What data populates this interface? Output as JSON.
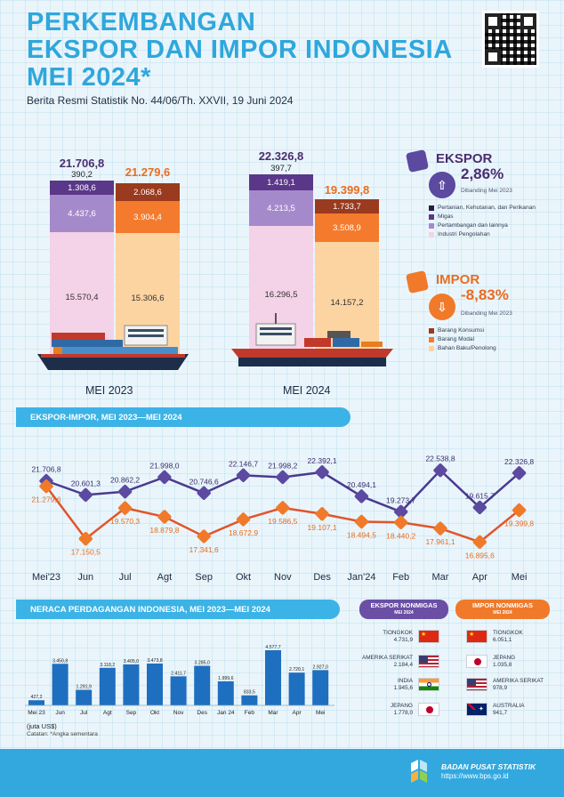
{
  "header": {
    "title_line1": "PERKEMBANGAN",
    "title_line2": "EKSPOR DAN IMPOR INDONESIA",
    "title_line3": "MEI 2024*",
    "subtitle": "Berita Resmi Statistik No. 44/06/Th. XXVII, 19 Juni 2024"
  },
  "colors": {
    "brand_blue": "#2fa7dc",
    "ekspor_purple": "#5b4aa0",
    "impor_orange": "#f07a2a",
    "ekspor_dark": "#4b2d6e",
    "ekspor_mid": "#a184c9",
    "ekspor_light": "#f3d3e8",
    "impor_dark": "#9a3a1e",
    "impor_mid": "#f47b2d",
    "impor_light": "#fcd4a2"
  },
  "bars": {
    "may2023": {
      "label": "MEI 2023",
      "ekspor": {
        "total": "21.706,8",
        "pertanian": "390,2",
        "migas": "1.308,6",
        "pertambangan": "4.437,6",
        "industri": "15.570,4"
      },
      "impor": {
        "total": "21.279,6",
        "konsumsi": "2.068,6",
        "modal": "3.904,4",
        "bahan_baku": "15.306,6"
      }
    },
    "may2024": {
      "label": "MEI 2024",
      "ekspor": {
        "total": "22.326,8",
        "pertanian": "397,7",
        "migas": "1.419,1",
        "pertambangan": "4.213,5",
        "industri": "16.296,5"
      },
      "impor": {
        "total": "19.399,8",
        "konsumsi": "1.733,7",
        "modal": "3.508,9",
        "bahan_baku": "14.157,2"
      }
    }
  },
  "kpi": {
    "ekspor": {
      "title": "EKSPOR",
      "value": "2,86%",
      "note": "Dibanding Mei 2023",
      "legend": [
        "Pertanian, Kehutanan, dan Perikanan",
        "Migas",
        "Pertambangan dan lainnya",
        "Industri Pengolahan"
      ]
    },
    "impor": {
      "title": "IMPOR",
      "value": "-8,83%",
      "note": "Dibanding Mei 2023",
      "legend": [
        "Barang Konsumsi",
        "Barang Modal",
        "Bahan Baku/Penolong"
      ]
    }
  },
  "line_section": {
    "title": "EKSPOR-IMPOR, MEI 2023—MEI 2024"
  },
  "chart_data": [
    {
      "type": "line",
      "title": "EKSPOR-IMPOR, MEI 2023—MEI 2024",
      "categories": [
        "Mei'23",
        "Jun",
        "Jul",
        "Agt",
        "Sep",
        "Okt",
        "Nov",
        "Des",
        "Jan'24",
        "Feb",
        "Mar",
        "Apr",
        "Mei"
      ],
      "series": [
        {
          "values": [
            21706.8,
            20601.3,
            20862.2,
            21998.0,
            20746.6,
            22146.7,
            21998.2,
            22392.1,
            20494.1,
            19273.7,
            22538.8,
            19615.7,
            22326.8
          ],
          "labels": [
            "21.706,8",
            "20.601,3",
            "20.862,2",
            "21.998,0",
            "20.746,6",
            "22.146,7",
            "21.998,2",
            "22.392,1",
            "20.494,1",
            "19.273,7",
            "22.538,8",
            "19.615,7",
            "22.326,8"
          ]
        },
        {
          "values": [
            21279.6,
            17150.5,
            19570.3,
            18879.8,
            17341.6,
            18672.9,
            19586.5,
            19107.1,
            18494.5,
            18440.2,
            17961.1,
            16895.6,
            19399.8
          ],
          "labels": [
            "21.279,6",
            "17.150,5",
            "19.570,3",
            "18.879,8",
            "17.341,6",
            "18.672,9",
            "19.586,5",
            "19.107,1",
            "18.494,5",
            "18.440,2",
            "17.961,1",
            "16.895,6",
            "19.399,8"
          ]
        }
      ]
    },
    {
      "type": "bar",
      "title": "NERACA PERDAGANGAN INDONESIA, MEI 2023—MEI 2024",
      "categories": [
        "Mei 23",
        "Jun",
        "Jul",
        "Agt",
        "Sep",
        "Okt",
        "Nov",
        "Des",
        "Jan 24",
        "Feb",
        "Mar",
        "Apr",
        "Mei"
      ],
      "values": [
        427.2,
        3450.8,
        1291.9,
        3118.2,
        3405.0,
        3473.8,
        2411.7,
        3285.0,
        1999.6,
        833.5,
        4577.7,
        2720.1,
        2927.0
      ],
      "labels": [
        "427,2",
        "3.450,8",
        "1.291,9",
        "3.118,2",
        "3.405,0",
        "3.473,8",
        "2.411,7",
        "3.285,0",
        "1.999,6",
        "833,5",
        "4.577,7",
        "2.720,1",
        "2.927,0"
      ],
      "ylabel": "(juta US$)"
    }
  ],
  "neraca": {
    "title": "NERACA PERDAGANGAN INDONESIA, MEI 2023—MEI 2024",
    "unit": "(juta US$)",
    "note": "Catatan: *Angka sementara"
  },
  "nonmigas": {
    "ekspor_title": "EKSPOR NONMIGAS",
    "ekspor_sub": "MEI 2024",
    "impor_title": "IMPOR NONMIGAS",
    "impor_sub": "MEI 2024",
    "ekspor": [
      {
        "country": "TIONGKOK",
        "value": "4.731,9",
        "flag": "china-flag-icon"
      },
      {
        "country": "AMERIKA SERIKAT",
        "value": "2.184,4",
        "flag": "usa-flag-icon"
      },
      {
        "country": "INDIA",
        "value": "1.945,6",
        "flag": "india-flag-icon"
      },
      {
        "country": "JEPANG",
        "value": "1.778,0",
        "flag": "japan-flag-icon"
      }
    ],
    "impor": [
      {
        "country": "TIONGKOK",
        "value": "6.051,1",
        "flag": "china-flag-icon"
      },
      {
        "country": "JEPANG",
        "value": "1.035,8",
        "flag": "japan-flag-icon"
      },
      {
        "country": "AMERIKA SERIKAT",
        "value": "978,9",
        "flag": "usa-flag-icon"
      },
      {
        "country": "AUSTRALIA",
        "value": "941,7",
        "flag": "australia-flag-icon"
      }
    ]
  },
  "footer": {
    "agency": "BADAN PUSAT STATISTIK",
    "url": "https://www.bps.go.id"
  }
}
